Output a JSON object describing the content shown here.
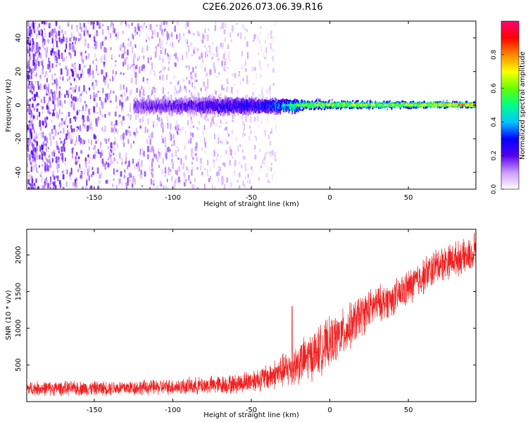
{
  "title": "C2E6.2026.073.06.39.R16",
  "chart_data": [
    {
      "type": "heatmap",
      "xlabel": "Height of straight line (km)",
      "ylabel": "Frequency (Hz)",
      "xlim": [
        -193,
        93
      ],
      "ylim": [
        -50,
        50
      ],
      "xticks": [
        -150,
        -100,
        -50,
        0,
        50
      ],
      "yticks": [
        -40,
        -20,
        0,
        20,
        40
      ],
      "colorbar": {
        "label": "Normalized spectral amplitude",
        "range": [
          0,
          1
        ],
        "ticks": [
          0.0,
          0.2,
          0.4,
          0.6,
          0.8
        ],
        "tick_labels": [
          "0.0",
          "0.2",
          "0.4",
          "0.6",
          "0.8"
        ],
        "colors": [
          "#ffffff",
          "#cc99ff",
          "#5500ee",
          "#0000ff",
          "#00c8ff",
          "#00ff88",
          "#66ff00",
          "#ffff00",
          "#ff8800",
          "#ff0000",
          "#ff0077"
        ]
      },
      "features": {
        "noise_region_x": [
          -193,
          -35
        ],
        "noise_amplitude": 0.2,
        "signal_band_center_hz": 0,
        "signal_band_x": [
          -125,
          93
        ],
        "signal_band_halfwidth_hz": [
          {
            "x": -120,
            "hz": 5
          },
          {
            "x": -60,
            "hz": 6
          },
          {
            "x": -30,
            "hz": 4
          },
          {
            "x": 0,
            "hz": 3
          },
          {
            "x": 90,
            "hz": 2
          }
        ],
        "peak_amplitude_by_x": [
          {
            "x": -120,
            "value": 0.18
          },
          {
            "x": -80,
            "value": 0.22
          },
          {
            "x": -40,
            "value": 0.3
          },
          {
            "x": -20,
            "value": 0.55
          },
          {
            "x": 0,
            "value": 0.6
          },
          {
            "x": 50,
            "value": 0.6
          },
          {
            "x": 90,
            "value": 0.75
          }
        ]
      }
    },
    {
      "type": "line",
      "xlabel": "Height of straight line (km)",
      "ylabel": "SNR (10 * v/v)",
      "xlim": [
        -193,
        93
      ],
      "ylim": [
        0,
        2350
      ],
      "xticks": [
        -150,
        -100,
        -50,
        0,
        50
      ],
      "yticks": [
        500,
        1000,
        1500,
        2000
      ],
      "color": "#ee2222",
      "series": [
        {
          "trend": [
            {
              "x": -193,
              "mean": 180,
              "spread": 110
            },
            {
              "x": -150,
              "mean": 180,
              "spread": 110
            },
            {
              "x": -100,
              "mean": 200,
              "spread": 120
            },
            {
              "x": -60,
              "mean": 240,
              "spread": 150
            },
            {
              "x": -40,
              "mean": 330,
              "spread": 200
            },
            {
              "x": -25,
              "mean": 460,
              "spread": 300
            },
            {
              "x": -10,
              "mean": 650,
              "spread": 380
            },
            {
              "x": 0,
              "mean": 800,
              "spread": 380
            },
            {
              "x": 10,
              "mean": 960,
              "spread": 360
            },
            {
              "x": 20,
              "mean": 1180,
              "spread": 330
            },
            {
              "x": 30,
              "mean": 1330,
              "spread": 280
            },
            {
              "x": 40,
              "mean": 1400,
              "spread": 260
            },
            {
              "x": 50,
              "mean": 1550,
              "spread": 280
            },
            {
              "x": 60,
              "mean": 1720,
              "spread": 280
            },
            {
              "x": 70,
              "mean": 1880,
              "spread": 280
            },
            {
              "x": 80,
              "mean": 1950,
              "spread": 260
            },
            {
              "x": 93,
              "mean": 2000,
              "spread": 250
            }
          ],
          "notable_peaks": [
            {
              "x": -24,
              "value": 1300
            },
            {
              "x": 92,
              "value": 2300
            }
          ]
        }
      ]
    }
  ]
}
